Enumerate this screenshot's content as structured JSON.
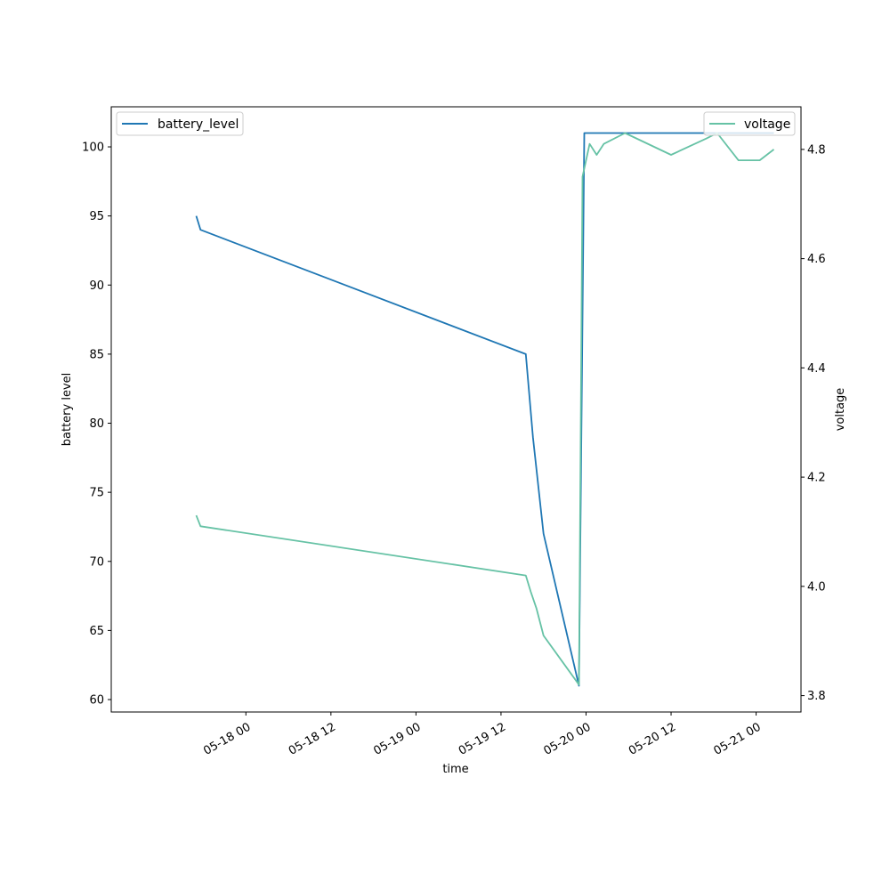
{
  "chart_data": {
    "type": "line",
    "xlabel": "time",
    "x_tick_labels": [
      "05-18 00",
      "05-18 12",
      "05-19 00",
      "05-19 12",
      "05-20 00",
      "05-20 12",
      "05-21 00"
    ],
    "x_ticks": [
      "2024-05-18T00:00",
      "2024-05-18T12:00",
      "2024-05-19T00:00",
      "2024-05-19T12:00",
      "2024-05-20T00:00",
      "2024-05-20T12:00",
      "2024-05-21T00:00"
    ],
    "xlim": [
      "2024-05-17T05:00",
      "2024-05-21T06:20"
    ],
    "left_axis": {
      "label": "battery level",
      "ylim": [
        59.1,
        102.9
      ],
      "ticks": [
        60,
        65,
        70,
        75,
        80,
        85,
        90,
        95,
        100
      ]
    },
    "right_axis": {
      "label": "voltage",
      "ylim": [
        3.77,
        4.878
      ],
      "ticks": [
        3.8,
        4.0,
        4.2,
        4.4,
        4.6,
        4.8
      ],
      "tick_labels": [
        "3.8",
        "4.0",
        "4.2",
        "4.4",
        "4.6",
        "4.8"
      ]
    },
    "grid": false,
    "series": [
      {
        "name": "battery_level",
        "axis": "left",
        "color": "#1f77b4",
        "legend_position": "upper-left",
        "points": [
          [
            "2024-05-17T17:00",
            95
          ],
          [
            "2024-05-17T17:36",
            94
          ],
          [
            "2024-05-19T15:30",
            85
          ],
          [
            "2024-05-19T16:30",
            79
          ],
          [
            "2024-05-19T18:00",
            72
          ],
          [
            "2024-05-19T23:00",
            61
          ],
          [
            "2024-05-19T23:45",
            101
          ],
          [
            "2024-05-21T02:30",
            101
          ]
        ]
      },
      {
        "name": "voltage",
        "axis": "right",
        "color": "#66c2a5",
        "legend_position": "upper-right",
        "points": [
          [
            "2024-05-17T17:00",
            4.13
          ],
          [
            "2024-05-17T17:36",
            4.11
          ],
          [
            "2024-05-19T15:30",
            4.02
          ],
          [
            "2024-05-19T16:12",
            3.99
          ],
          [
            "2024-05-19T17:00",
            3.96
          ],
          [
            "2024-05-19T18:00",
            3.91
          ],
          [
            "2024-05-19T23:00",
            3.82
          ],
          [
            "2024-05-19T23:30",
            4.75
          ],
          [
            "2024-05-20T00:30",
            4.81
          ],
          [
            "2024-05-20T01:30",
            4.79
          ],
          [
            "2024-05-20T02:30",
            4.81
          ],
          [
            "2024-05-20T05:30",
            4.83
          ],
          [
            "2024-05-20T12:00",
            4.79
          ],
          [
            "2024-05-20T17:00",
            4.82
          ],
          [
            "2024-05-20T18:30",
            4.83
          ],
          [
            "2024-05-20T21:30",
            4.78
          ],
          [
            "2024-05-21T00:30",
            4.78
          ],
          [
            "2024-05-21T02:30",
            4.8
          ]
        ]
      }
    ]
  }
}
